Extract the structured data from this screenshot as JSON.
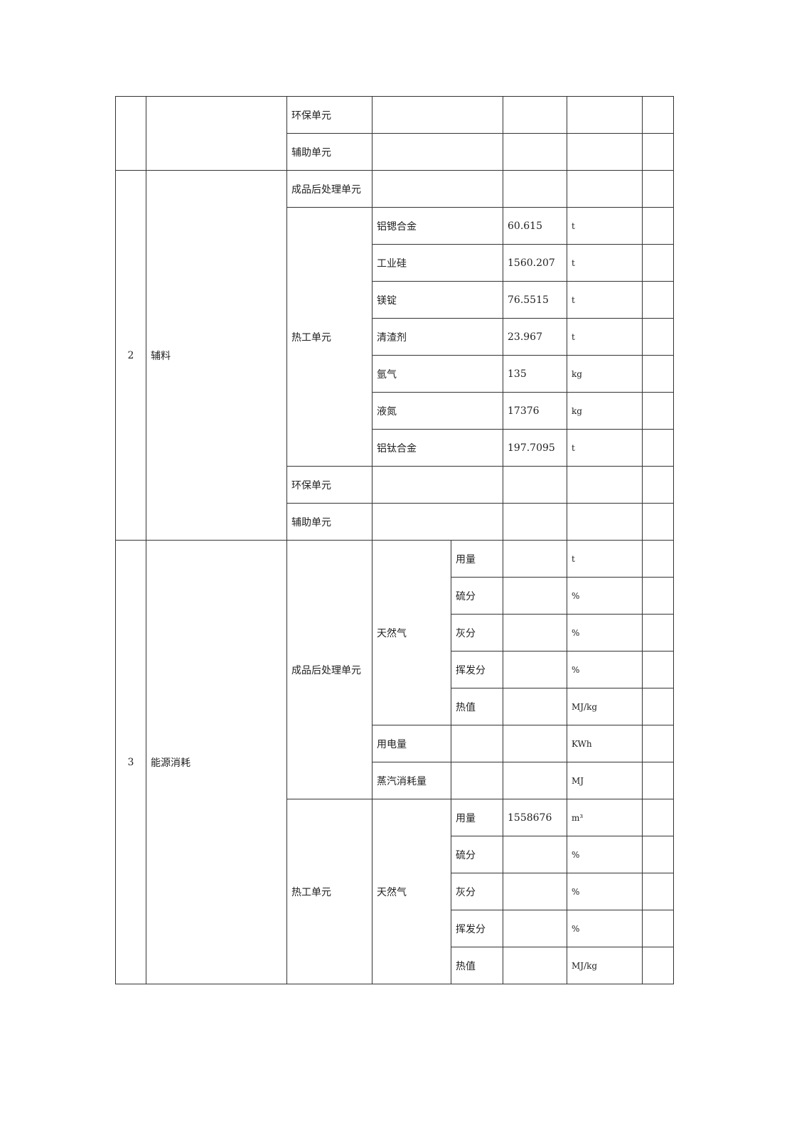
{
  "table": {
    "block1": {
      "env_unit": "环保单元",
      "aux_unit": "辅助单元"
    },
    "block2": {
      "no": "2",
      "category": "辅料",
      "post_unit": "成品后处理单元",
      "hot_unit": "热工单元",
      "items": [
        {
          "name": "铝锶合金",
          "value": "60.615",
          "unit": "t"
        },
        {
          "name": "工业硅",
          "value": "1560.207",
          "unit": "t"
        },
        {
          "name": "镁锭",
          "value": "76.5515",
          "unit": "t"
        },
        {
          "name": "清渣剂",
          "value": "23.967",
          "unit": "t"
        },
        {
          "name": "氩气",
          "value": "135",
          "unit": "kg"
        },
        {
          "name": "液氮",
          "value": "17376",
          "unit": "kg"
        },
        {
          "name": "铝钛合金",
          "value": "197.7095",
          "unit": "t"
        }
      ],
      "env_unit": "环保单元",
      "aux_unit": "辅助单元"
    },
    "block3": {
      "no": "3",
      "category": "能源消耗",
      "post_unit": "成品后处理单元",
      "gas": "天然气",
      "post_gas_rows": [
        {
          "param": "用量",
          "value": "",
          "unit": "t"
        },
        {
          "param": "硫分",
          "value": "",
          "unit": "%"
        },
        {
          "param": "灰分",
          "value": "",
          "unit": "%"
        },
        {
          "param": "挥发分",
          "value": "",
          "unit": "%"
        },
        {
          "param": "热值",
          "value": "",
          "unit": "MJ/kg"
        }
      ],
      "electricity": {
        "name": "用电量",
        "value": "",
        "unit": "KWh"
      },
      "steam": {
        "name": "蒸汽消耗量",
        "value": "",
        "unit": "MJ"
      },
      "hot_unit": "热工单元",
      "hot_gas_rows": [
        {
          "param": "用量",
          "value": "1558676",
          "unit": "m³"
        },
        {
          "param": "硫分",
          "value": "",
          "unit": "%"
        },
        {
          "param": "灰分",
          "value": "",
          "unit": "%"
        },
        {
          "param": "挥发分",
          "value": "",
          "unit": "%"
        },
        {
          "param": "热值",
          "value": "",
          "unit": "MJ/kg"
        }
      ]
    }
  }
}
